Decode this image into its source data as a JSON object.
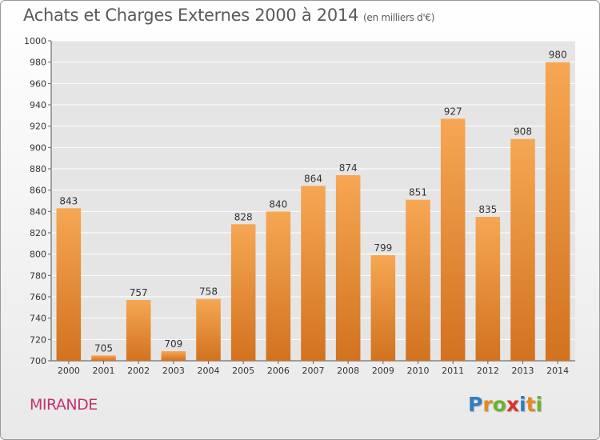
{
  "header": {
    "title": "Achats et Charges Externes 2000 à 2014",
    "unit": "(en milliers d'€)"
  },
  "footer": {
    "commune": "MIRANDE",
    "logo": {
      "text": "Proxiti",
      "letter_colors": [
        "#2f7fc1",
        "#e8871e",
        "#6ab42d",
        "#d8352a",
        "#2f7fc1",
        "#e8871e",
        "#6ab42d"
      ]
    }
  },
  "chart_data": {
    "type": "bar",
    "categories": [
      "2000",
      "2001",
      "2002",
      "2003",
      "2004",
      "2005",
      "2006",
      "2007",
      "2008",
      "2009",
      "2010",
      "2011",
      "2012",
      "2013",
      "2014"
    ],
    "values": [
      843,
      705,
      757,
      709,
      758,
      828,
      840,
      864,
      874,
      799,
      851,
      927,
      835,
      908,
      980
    ],
    "ylim": [
      700,
      1000
    ],
    "yticks": [
      700,
      720,
      740,
      760,
      780,
      800,
      820,
      840,
      860,
      880,
      900,
      920,
      940,
      960,
      980,
      1000
    ],
    "grid": true,
    "colors": {
      "bar_top": "#f6a753",
      "bar_bottom": "#d2721f",
      "grid": "#ffffff",
      "plot_bg": "#e5e5e5"
    }
  }
}
